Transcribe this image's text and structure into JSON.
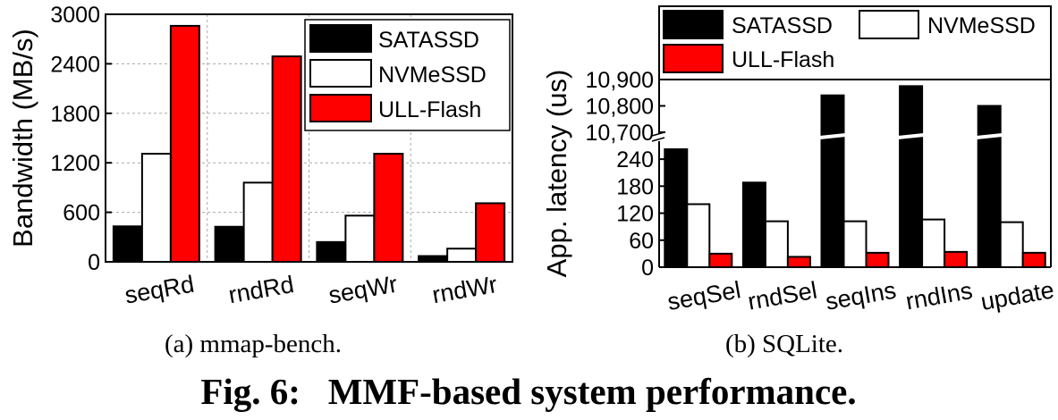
{
  "chart_data": [
    {
      "type": "bar",
      "title": "",
      "ylabel": "Bandwidth (MB/s)",
      "xlabel": "",
      "ylim": [
        0,
        3000
      ],
      "yticks": [
        0,
        600,
        1200,
        1800,
        2400,
        3000
      ],
      "categories": [
        "seqRd",
        "rndRd",
        "seqWr",
        "rndWr"
      ],
      "series": [
        {
          "name": "SATASSD",
          "color": "#000000",
          "values": [
            430,
            425,
            240,
            70
          ]
        },
        {
          "name": "NVMeSSD",
          "color": "#ffffff",
          "values": [
            1310,
            960,
            560,
            160
          ]
        },
        {
          "name": "ULL-Flash",
          "color": "#ff0000",
          "values": [
            2860,
            2490,
            1310,
            710
          ]
        }
      ],
      "grid": true,
      "legend": "top-right",
      "caption": "(a) mmap-bench."
    },
    {
      "type": "bar",
      "title": "",
      "ylabel": "App. latency (us)",
      "xlabel": "",
      "yaxis_break": true,
      "ylim_lower": [
        0,
        270
      ],
      "ylim_upper": [
        10700,
        10900
      ],
      "yticks_lower": [
        0,
        60,
        120,
        180,
        240
      ],
      "yticks_upper": [
        "10,700",
        "10,800",
        "10,900"
      ],
      "yticks_upper_values": [
        10700,
        10800,
        10900
      ],
      "categories": [
        "seqSel",
        "rndSel",
        "seqIns",
        "rndIns",
        "update"
      ],
      "series": [
        {
          "name": "SATASSD",
          "color": "#000000",
          "values": [
            262,
            188,
            10840,
            10875,
            10800
          ]
        },
        {
          "name": "NVMeSSD",
          "color": "#ffffff",
          "values": [
            140,
            102,
            102,
            106,
            100
          ]
        },
        {
          "name": "ULL-Flash",
          "color": "#ff0000",
          "values": [
            30,
            23,
            32,
            34,
            32
          ]
        }
      ],
      "grid": false,
      "legend": "top",
      "caption": "(b) SQLite."
    }
  ],
  "figure_caption": "Fig. 6:   MMF-based system performance."
}
